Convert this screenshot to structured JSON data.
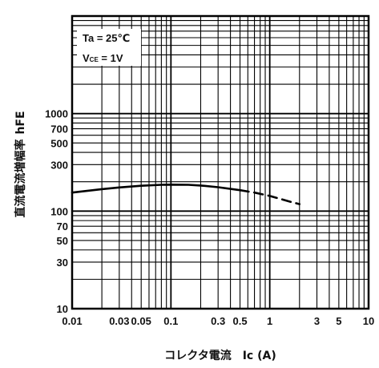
{
  "chart_data": {
    "type": "line",
    "x_scale": "log",
    "y_scale": "log",
    "xlim": [
      0.01,
      10
    ],
    "ylim": [
      10,
      10000
    ],
    "xlabel": "コレクタ電流　Ic (A)",
    "ylabel_main": "直流電流増幅率",
    "ylabel_symbol": "hFE",
    "x_ticks": [
      {
        "value": 0.01,
        "label": "0.01"
      },
      {
        "value": 0.03,
        "label": "0.03"
      },
      {
        "value": 0.05,
        "label": "0.05"
      },
      {
        "value": 0.1,
        "label": "0.1"
      },
      {
        "value": 0.3,
        "label": "0.3"
      },
      {
        "value": 0.5,
        "label": "0.5"
      },
      {
        "value": 1,
        "label": "1"
      },
      {
        "value": 3,
        "label": "3"
      },
      {
        "value": 5,
        "label": "5"
      },
      {
        "value": 10,
        "label": "10"
      }
    ],
    "y_ticks": [
      {
        "value": 10,
        "label": "10"
      },
      {
        "value": 30,
        "label": "30"
      },
      {
        "value": 50,
        "label": "50"
      },
      {
        "value": 70,
        "label": "70"
      },
      {
        "value": 100,
        "label": "100"
      },
      {
        "value": 300,
        "label": "300"
      },
      {
        "value": 500,
        "label": "500"
      },
      {
        "value": 700,
        "label": "700"
      },
      {
        "value": 1000,
        "label": "1000"
      }
    ],
    "conditions": {
      "ta": "Ta = 25℃",
      "vce_prefix": "V",
      "vce_sub": "CE",
      "vce_suffix": " = 1V"
    },
    "series": [
      {
        "style": "solid",
        "x": [
          0.01,
          0.02,
          0.03,
          0.05,
          0.08,
          0.1,
          0.15,
          0.2,
          0.3,
          0.5
        ],
        "y": [
          155,
          168,
          175,
          182,
          186,
          187,
          186,
          183,
          176,
          164
        ]
      },
      {
        "style": "dashed",
        "x": [
          0.5,
          0.7,
          1,
          1.3,
          1.6,
          2
        ],
        "y": [
          164,
          155,
          143,
          133,
          125,
          118
        ]
      }
    ],
    "grid": true
  }
}
